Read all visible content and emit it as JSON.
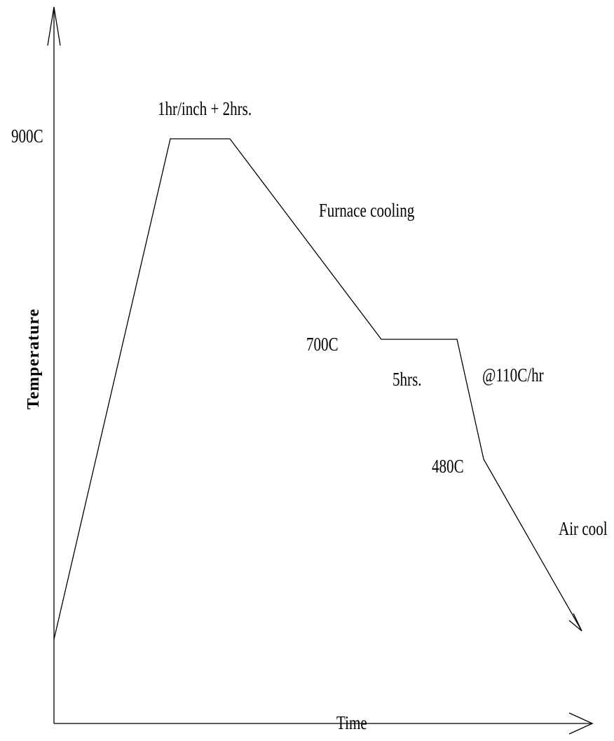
{
  "diagram": {
    "y_axis_label": "Temperature",
    "x_axis_label": "Time",
    "temperatures": {
      "t900": "900C",
      "t700": "700C",
      "t480": "480C"
    },
    "annotations": {
      "soak_900": "1hr/inch + 2hrs.",
      "furnace": "Furnace cooling",
      "hold_700": "5hrs.",
      "rate": "@110C/hr",
      "air": "Air cool"
    }
  }
}
